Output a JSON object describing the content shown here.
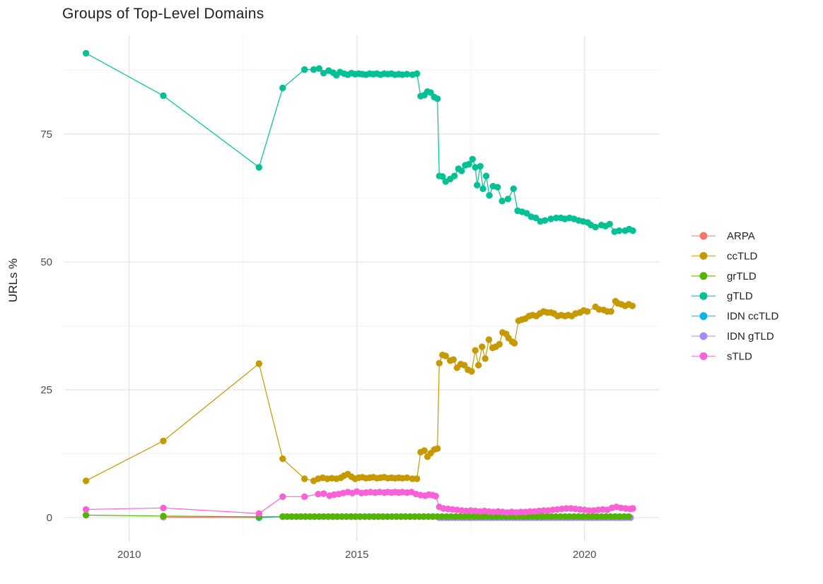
{
  "title": "Groups of Top-Level Domains",
  "ylabel": "URLs %",
  "chart_data": {
    "type": "line",
    "style": "scatter-line (R ggplot2 geom_point + geom_line, theme_minimal)",
    "background": "#ffffff",
    "grid": {
      "major_color": "#e6e6e6",
      "minor_color": "#f1f1f1"
    },
    "x_axis": {
      "label": "",
      "ticks": [
        2010,
        2015,
        2020
      ],
      "minor_ticks": [
        2012.5,
        2017.5
      ],
      "range": [
        2008.56,
        2021.65
      ]
    },
    "y_axis": {
      "label": "URLs %",
      "ticks": [
        0,
        25,
        50,
        75
      ],
      "minor_ticks": [
        12.5,
        37.5,
        62.5,
        87.5
      ],
      "range": [
        -3.45,
        94.3
      ]
    },
    "legend": {
      "position": "right",
      "items": [
        "ARPA",
        "ccTLD",
        "grTLD",
        "gTLD",
        "IDN ccTLD",
        "IDN gTLD",
        "sTLD"
      ]
    },
    "series": [
      {
        "name": "ARPA",
        "color": "#F8766D",
        "draw_order": 0,
        "points": [
          [
            2010.75,
            0.1
          ],
          [
            2012.85,
            0.0
          ]
        ]
      },
      {
        "name": "ccTLD",
        "color": "#C49A00",
        "draw_order": 4,
        "points": [
          [
            2009.05,
            7.2
          ],
          [
            2010.75,
            15.0
          ],
          [
            2012.85,
            30.1
          ],
          [
            2013.37,
            11.5
          ],
          [
            2013.85,
            7.6
          ],
          [
            2014.05,
            7.2
          ],
          [
            2014.15,
            7.6
          ],
          [
            2014.25,
            7.8
          ],
          [
            2014.35,
            7.6
          ],
          [
            2014.45,
            7.7
          ],
          [
            2014.55,
            7.6
          ],
          [
            2014.65,
            7.8
          ],
          [
            2014.72,
            8.2
          ],
          [
            2014.8,
            8.5
          ],
          [
            2014.88,
            8.0
          ],
          [
            2014.96,
            7.6
          ],
          [
            2015.04,
            7.8
          ],
          [
            2015.12,
            7.9
          ],
          [
            2015.2,
            7.7
          ],
          [
            2015.28,
            7.8
          ],
          [
            2015.36,
            7.9
          ],
          [
            2015.44,
            7.7
          ],
          [
            2015.52,
            7.8
          ],
          [
            2015.6,
            7.9
          ],
          [
            2015.68,
            7.7
          ],
          [
            2015.76,
            7.8
          ],
          [
            2015.84,
            7.7
          ],
          [
            2015.92,
            7.8
          ],
          [
            2016.0,
            7.7
          ],
          [
            2016.1,
            7.8
          ],
          [
            2016.22,
            7.6
          ],
          [
            2016.32,
            7.6
          ],
          [
            2016.4,
            12.8
          ],
          [
            2016.48,
            13.1
          ],
          [
            2016.55,
            11.9
          ],
          [
            2016.62,
            12.6
          ],
          [
            2016.7,
            13.3
          ],
          [
            2016.77,
            13.5
          ],
          [
            2016.81,
            30.2
          ],
          [
            2016.88,
            31.8
          ],
          [
            2016.95,
            31.6
          ],
          [
            2017.05,
            30.7
          ],
          [
            2017.12,
            30.9
          ],
          [
            2017.2,
            29.3
          ],
          [
            2017.28,
            30.0
          ],
          [
            2017.36,
            29.8
          ],
          [
            2017.44,
            28.9
          ],
          [
            2017.52,
            28.6
          ],
          [
            2017.6,
            32.7
          ],
          [
            2017.67,
            29.8
          ],
          [
            2017.75,
            33.4
          ],
          [
            2017.82,
            31.1
          ],
          [
            2017.9,
            34.8
          ],
          [
            2017.98,
            33.2
          ],
          [
            2018.05,
            33.4
          ],
          [
            2018.13,
            33.9
          ],
          [
            2018.2,
            36.2
          ],
          [
            2018.28,
            35.9
          ],
          [
            2018.33,
            35.1
          ],
          [
            2018.41,
            34.4
          ],
          [
            2018.46,
            34.1
          ],
          [
            2018.55,
            38.5
          ],
          [
            2018.62,
            38.7
          ],
          [
            2018.7,
            38.9
          ],
          [
            2018.78,
            39.4
          ],
          [
            2018.86,
            39.6
          ],
          [
            2018.94,
            39.4
          ],
          [
            2019.02,
            39.9
          ],
          [
            2019.1,
            40.3
          ],
          [
            2019.18,
            40.1
          ],
          [
            2019.26,
            40.1
          ],
          [
            2019.33,
            39.9
          ],
          [
            2019.41,
            39.4
          ],
          [
            2019.49,
            39.6
          ],
          [
            2019.57,
            39.4
          ],
          [
            2019.64,
            39.6
          ],
          [
            2019.72,
            39.4
          ],
          [
            2019.8,
            39.9
          ],
          [
            2019.9,
            40.1
          ],
          [
            2019.98,
            40.5
          ],
          [
            2020.06,
            40.3
          ],
          [
            2020.24,
            41.2
          ],
          [
            2020.32,
            40.7
          ],
          [
            2020.42,
            40.6
          ],
          [
            2020.5,
            40.3
          ],
          [
            2020.58,
            40.3
          ],
          [
            2020.68,
            42.3
          ],
          [
            2020.73,
            41.9
          ],
          [
            2020.81,
            41.7
          ],
          [
            2020.89,
            41.4
          ],
          [
            2020.97,
            41.7
          ],
          [
            2021.05,
            41.4
          ]
        ]
      },
      {
        "name": "grTLD",
        "color": "#53B400",
        "draw_order": 3,
        "points": [
          [
            2009.05,
            0.5
          ],
          [
            2010.75,
            0.3
          ],
          [
            2012.85,
            0.15
          ]
        ],
        "runs": [
          {
            "from": 2013.37,
            "to": 2021.06,
            "step": 0.1,
            "value": 0.2
          }
        ]
      },
      {
        "name": "gTLD",
        "color": "#00C094",
        "draw_order": 5,
        "points": [
          [
            2009.05,
            90.8
          ],
          [
            2010.75,
            82.5
          ],
          [
            2012.85,
            68.5
          ],
          [
            2013.37,
            84.0
          ],
          [
            2013.85,
            87.6
          ],
          [
            2014.05,
            87.6
          ],
          [
            2014.17,
            87.8
          ],
          [
            2014.27,
            86.9
          ],
          [
            2014.38,
            87.4
          ],
          [
            2014.48,
            87.0
          ],
          [
            2014.55,
            86.5
          ],
          [
            2014.63,
            87.1
          ],
          [
            2014.72,
            86.8
          ],
          [
            2014.8,
            86.6
          ],
          [
            2014.88,
            86.9
          ],
          [
            2014.96,
            86.7
          ],
          [
            2015.04,
            86.8
          ],
          [
            2015.12,
            86.7
          ],
          [
            2015.2,
            86.6
          ],
          [
            2015.28,
            86.8
          ],
          [
            2015.36,
            86.7
          ],
          [
            2015.44,
            86.8
          ],
          [
            2015.52,
            86.6
          ],
          [
            2015.6,
            86.8
          ],
          [
            2015.68,
            86.7
          ],
          [
            2015.76,
            86.8
          ],
          [
            2015.84,
            86.6
          ],
          [
            2015.92,
            86.7
          ],
          [
            2016.0,
            86.6
          ],
          [
            2016.1,
            86.7
          ],
          [
            2016.22,
            86.6
          ],
          [
            2016.32,
            86.8
          ],
          [
            2016.4,
            82.4
          ],
          [
            2016.48,
            82.6
          ],
          [
            2016.55,
            83.3
          ],
          [
            2016.62,
            83.1
          ],
          [
            2016.7,
            82.2
          ],
          [
            2016.77,
            81.9
          ],
          [
            2016.81,
            66.8
          ],
          [
            2016.88,
            66.7
          ],
          [
            2016.95,
            65.7
          ],
          [
            2017.05,
            66.2
          ],
          [
            2017.14,
            66.8
          ],
          [
            2017.23,
            68.2
          ],
          [
            2017.3,
            67.8
          ],
          [
            2017.38,
            68.9
          ],
          [
            2017.46,
            69.1
          ],
          [
            2017.54,
            70.1
          ],
          [
            2017.6,
            68.5
          ],
          [
            2017.64,
            65.0
          ],
          [
            2017.71,
            68.7
          ],
          [
            2017.77,
            64.3
          ],
          [
            2017.84,
            66.8
          ],
          [
            2017.91,
            63.0
          ],
          [
            2017.99,
            64.8
          ],
          [
            2018.09,
            64.6
          ],
          [
            2018.19,
            61.9
          ],
          [
            2018.32,
            62.3
          ],
          [
            2018.44,
            64.3
          ],
          [
            2018.53,
            60.0
          ],
          [
            2018.63,
            59.8
          ],
          [
            2018.73,
            59.5
          ],
          [
            2018.83,
            58.8
          ],
          [
            2018.93,
            58.6
          ],
          [
            2019.03,
            57.9
          ],
          [
            2019.13,
            58.1
          ],
          [
            2019.26,
            58.4
          ],
          [
            2019.38,
            58.6
          ],
          [
            2019.48,
            58.6
          ],
          [
            2019.57,
            58.4
          ],
          [
            2019.67,
            58.6
          ],
          [
            2019.77,
            58.4
          ],
          [
            2019.87,
            58.1
          ],
          [
            2019.97,
            57.9
          ],
          [
            2020.07,
            57.7
          ],
          [
            2020.14,
            57.2
          ],
          [
            2020.24,
            56.8
          ],
          [
            2020.37,
            57.2
          ],
          [
            2020.46,
            57.0
          ],
          [
            2020.55,
            57.4
          ],
          [
            2020.66,
            55.9
          ],
          [
            2020.76,
            56.1
          ],
          [
            2020.89,
            56.1
          ],
          [
            2020.98,
            56.4
          ],
          [
            2021.06,
            56.1
          ]
        ]
      },
      {
        "name": "IDN ccTLD",
        "color": "#00B6EB",
        "draw_order": 1,
        "points": [
          [
            2012.85,
            0.0
          ]
        ],
        "runs": [
          {
            "from": 2013.37,
            "to": 2021.06,
            "step": 0.1,
            "value": 0.2
          }
        ]
      },
      {
        "name": "IDN gTLD",
        "color": "#A58AFF",
        "draw_order": 2,
        "runs": [
          {
            "from": 2016.81,
            "to": 2021.06,
            "step": 0.07,
            "value": 0.0
          }
        ]
      },
      {
        "name": "sTLD",
        "color": "#FB61D7",
        "draw_order": 6,
        "points": [
          [
            2009.05,
            1.6
          ],
          [
            2010.75,
            1.9
          ],
          [
            2012.85,
            0.8
          ],
          [
            2013.37,
            4.1
          ],
          [
            2013.85,
            4.1
          ],
          [
            2014.15,
            4.6
          ],
          [
            2014.27,
            4.7
          ],
          [
            2014.4,
            4.3
          ],
          [
            2014.5,
            4.5
          ],
          [
            2014.6,
            4.6
          ],
          [
            2014.7,
            4.8
          ],
          [
            2014.8,
            5.0
          ],
          [
            2014.9,
            4.8
          ],
          [
            2015.0,
            5.1
          ],
          [
            2015.1,
            4.8
          ],
          [
            2015.2,
            4.9
          ],
          [
            2015.3,
            5.0
          ],
          [
            2015.4,
            4.9
          ],
          [
            2015.5,
            5.0
          ],
          [
            2015.6,
            4.9
          ],
          [
            2015.68,
            5.0
          ],
          [
            2015.76,
            4.9
          ],
          [
            2015.84,
            5.0
          ],
          [
            2015.92,
            4.9
          ],
          [
            2016.0,
            5.0
          ],
          [
            2016.1,
            4.9
          ],
          [
            2016.2,
            5.0
          ],
          [
            2016.3,
            4.6
          ],
          [
            2016.4,
            4.4
          ],
          [
            2016.5,
            4.3
          ],
          [
            2016.58,
            4.5
          ],
          [
            2016.66,
            4.4
          ],
          [
            2016.73,
            4.2
          ],
          [
            2016.81,
            2.1
          ],
          [
            2016.9,
            1.8
          ],
          [
            2017.0,
            1.7
          ],
          [
            2017.1,
            1.6
          ],
          [
            2017.2,
            1.5
          ],
          [
            2017.3,
            1.4
          ],
          [
            2017.4,
            1.3
          ],
          [
            2017.5,
            1.4
          ],
          [
            2017.6,
            1.3
          ],
          [
            2017.7,
            1.2
          ],
          [
            2017.8,
            1.3
          ],
          [
            2017.9,
            1.2
          ],
          [
            2018.0,
            1.1
          ],
          [
            2018.1,
            1.2
          ],
          [
            2018.2,
            1.1
          ],
          [
            2018.3,
            1.0
          ],
          [
            2018.4,
            1.1
          ],
          [
            2018.5,
            1.0
          ],
          [
            2018.6,
            1.1
          ],
          [
            2018.7,
            1.1
          ],
          [
            2018.8,
            1.2
          ],
          [
            2018.9,
            1.2
          ],
          [
            2019.0,
            1.3
          ],
          [
            2019.1,
            1.4
          ],
          [
            2019.2,
            1.4
          ],
          [
            2019.3,
            1.5
          ],
          [
            2019.4,
            1.6
          ],
          [
            2019.5,
            1.7
          ],
          [
            2019.6,
            1.8
          ],
          [
            2019.7,
            1.8
          ],
          [
            2019.8,
            1.7
          ],
          [
            2019.9,
            1.6
          ],
          [
            2020.0,
            1.5
          ],
          [
            2020.1,
            1.4
          ],
          [
            2020.2,
            1.4
          ],
          [
            2020.3,
            1.5
          ],
          [
            2020.4,
            1.6
          ],
          [
            2020.5,
            1.5
          ],
          [
            2020.6,
            1.9
          ],
          [
            2020.7,
            2.1
          ],
          [
            2020.8,
            1.9
          ],
          [
            2020.9,
            1.8
          ],
          [
            2021.0,
            1.7
          ],
          [
            2021.06,
            1.8
          ]
        ]
      }
    ]
  }
}
